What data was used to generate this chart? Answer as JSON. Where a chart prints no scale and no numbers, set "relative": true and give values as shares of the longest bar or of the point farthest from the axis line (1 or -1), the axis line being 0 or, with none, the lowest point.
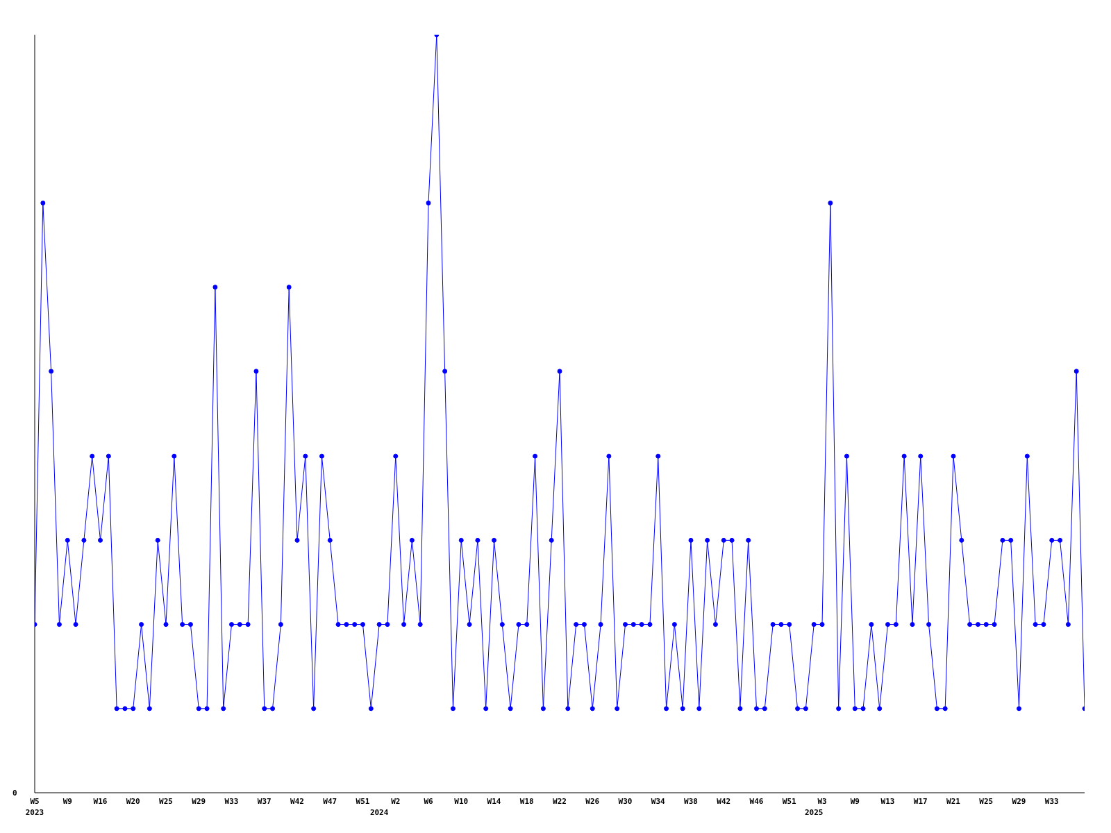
{
  "chart_data": {
    "type": "line",
    "relative": true,
    "color": "#0000ff",
    "marker": "circle",
    "line_style": "solid",
    "annotations": [
      "0"
    ],
    "categories": [
      "W5\n2023",
      null,
      null,
      null,
      "W9",
      null,
      null,
      null,
      "W16",
      null,
      null,
      null,
      "W20",
      null,
      null,
      null,
      "W25",
      null,
      null,
      null,
      "W29",
      null,
      null,
      null,
      "W33",
      null,
      null,
      null,
      "W37",
      null,
      null,
      null,
      "W42",
      null,
      null,
      null,
      "W47",
      null,
      null,
      null,
      "W51",
      null,
      "\n2024",
      null,
      "W2",
      null,
      null,
      null,
      "W6",
      null,
      null,
      null,
      "W10",
      null,
      null,
      null,
      "W14",
      null,
      null,
      null,
      "W18",
      null,
      null,
      null,
      "W22",
      null,
      null,
      null,
      "W26",
      null,
      null,
      null,
      "W30",
      null,
      null,
      null,
      "W34",
      null,
      null,
      null,
      "W38",
      null,
      null,
      null,
      "W42",
      null,
      null,
      null,
      "W46",
      null,
      null,
      null,
      "W51",
      null,
      null,
      "\n2025",
      "W3",
      null,
      null,
      null,
      "W9",
      null,
      null,
      null,
      "W13",
      null,
      null,
      null,
      "W17",
      null,
      null,
      null,
      "W21",
      null,
      null,
      null,
      "W25",
      null,
      null,
      null,
      "W29",
      null,
      null,
      null,
      "W33",
      null,
      null,
      null,
      null
    ],
    "values": [
      0.222,
      0.778,
      0.556,
      0.222,
      0.333,
      0.222,
      0.333,
      0.444,
      0.333,
      0.444,
      0.111,
      0.111,
      0.111,
      0.222,
      0.111,
      0.333,
      0.222,
      0.444,
      0.222,
      0.222,
      0.111,
      0.111,
      0.667,
      0.111,
      0.222,
      0.222,
      0.222,
      0.556,
      0.111,
      0.111,
      0.222,
      0.667,
      0.333,
      0.444,
      0.111,
      0.444,
      0.333,
      0.222,
      0.222,
      0.222,
      0.222,
      0.111,
      0.222,
      0.222,
      0.444,
      0.222,
      0.333,
      0.222,
      0.778,
      1,
      0.556,
      0.111,
      0.333,
      0.222,
      0.333,
      0.111,
      0.333,
      0.222,
      0.111,
      0.222,
      0.222,
      0.444,
      0.111,
      0.333,
      0.556,
      0.111,
      0.222,
      0.222,
      0.111,
      0.222,
      0.444,
      0.111,
      0.222,
      0.222,
      0.222,
      0.222,
      0.444,
      0.111,
      0.222,
      0.111,
      0.333,
      0.111,
      0.333,
      0.222,
      0.333,
      0.333,
      0.111,
      0.333,
      0.111,
      0.111,
      0.222,
      0.222,
      0.222,
      0.111,
      0.111,
      0.222,
      0.222,
      0.778,
      0.111,
      0.444,
      0.111,
      0.111,
      0.222,
      0.111,
      0.222,
      0.222,
      0.444,
      0.222,
      0.444,
      0.222,
      0.111,
      0.111,
      0.444,
      0.333,
      0.222,
      0.222,
      0.222,
      0.222,
      0.333,
      0.333,
      0.111,
      0.444,
      0.222,
      0.222,
      0.333,
      0.333,
      0.222,
      0.556,
      0.111
    ]
  }
}
